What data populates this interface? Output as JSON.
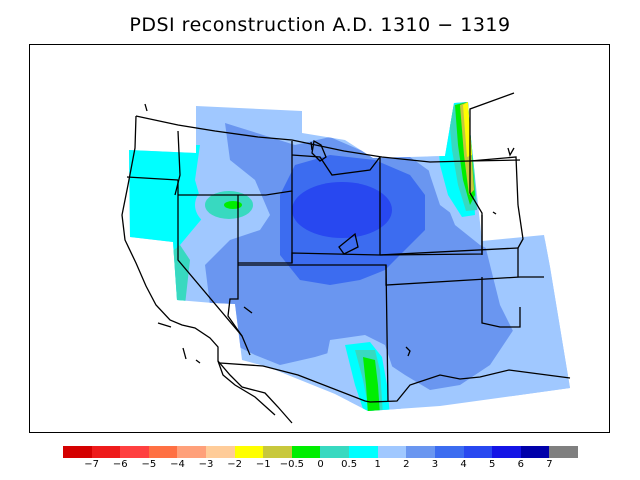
{
  "title": "PDSI reconstruction A.D. 1310 − 1319",
  "legend": {
    "colors": [
      "#d40000",
      "#ee1a1a",
      "#ff4040",
      "#ff7043",
      "#ffa07a",
      "#ffcc99",
      "#ffff00",
      "#c8c83c",
      "#00ee00",
      "#38d9c0",
      "#00ffff",
      "#a0c8ff",
      "#6a96f0",
      "#3c6cf0",
      "#2848f0",
      "#1414e6",
      "#0000aa",
      "#7f7f7f"
    ],
    "labels": [
      "−7",
      "−6",
      "−5",
      "−4",
      "−3",
      "−2",
      "−1",
      "−0.5",
      "0",
      "0.5",
      "1",
      "2",
      "3",
      "4",
      "5",
      "6",
      "7"
    ]
  }
}
